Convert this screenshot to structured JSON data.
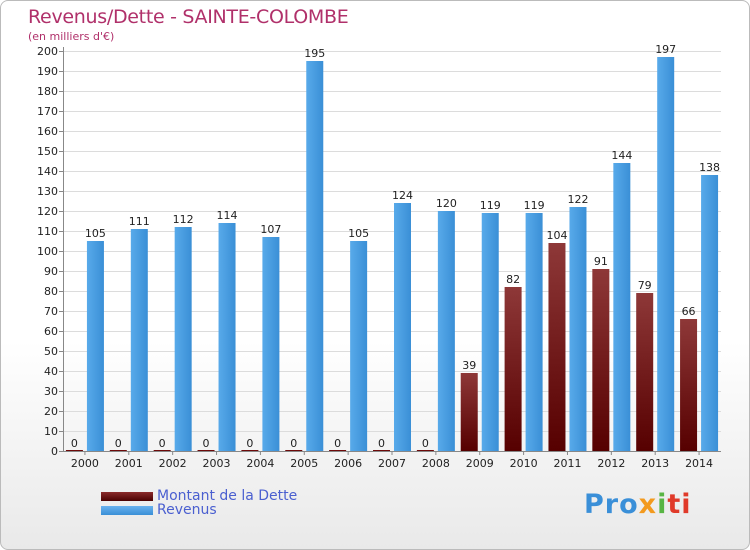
{
  "chart_data": {
    "type": "bar",
    "title": "Revenus/Dette - SAINTE-COLOMBE",
    "subtitle": "(en milliers d'€)",
    "xlabel": "",
    "ylabel": "",
    "ylim": [
      0,
      200
    ],
    "yticks": [
      0,
      10,
      20,
      30,
      40,
      50,
      60,
      70,
      80,
      90,
      100,
      110,
      120,
      130,
      140,
      150,
      160,
      170,
      180,
      190,
      200
    ],
    "grid": true,
    "categories": [
      "2000",
      "2001",
      "2002",
      "2003",
      "2004",
      "2005",
      "2006",
      "2007",
      "2008",
      "2009",
      "2010",
      "2011",
      "2012",
      "2013",
      "2014"
    ],
    "series": [
      {
        "name": "Montant de la Dette",
        "color": "#6e0a0a",
        "values": [
          0,
          0,
          0,
          0,
          0,
          0,
          0,
          0,
          0,
          39,
          82,
          104,
          91,
          79,
          66
        ]
      },
      {
        "name": "Revenus",
        "color": "#3d94db",
        "values": [
          105,
          111,
          112,
          114,
          107,
          195,
          105,
          124,
          120,
          119,
          119,
          122,
          144,
          197,
          138
        ]
      }
    ],
    "legend_position": "bottom-left"
  },
  "logo": {
    "p1": "Pro",
    "p2": "x",
    "p3": "i",
    "p4": "ti"
  }
}
